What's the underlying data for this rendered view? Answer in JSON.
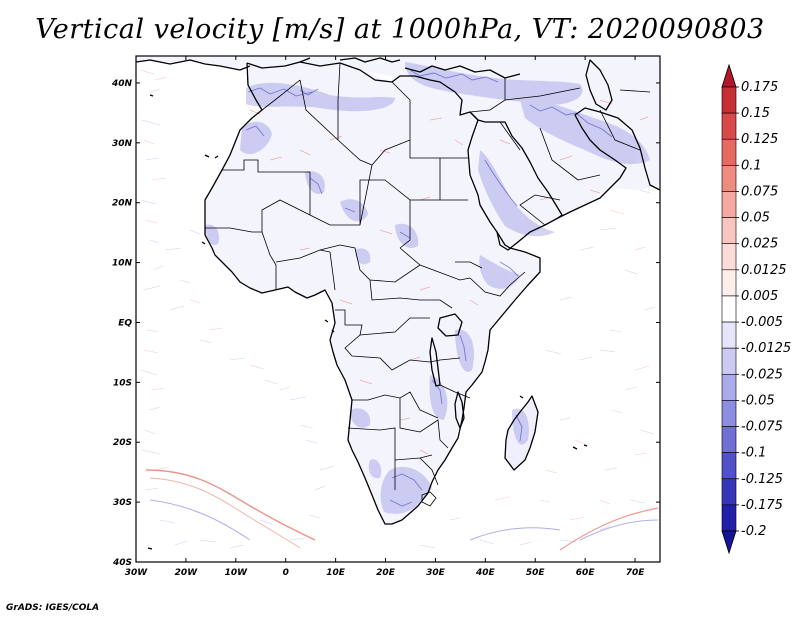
{
  "title": "Vertical velocity [m/s] at 1000hPa, VT: 2020090803",
  "credit": "GrADS: IGES/COLA",
  "map": {
    "lon_labels": [
      "30W",
      "20W",
      "10W",
      "0",
      "10E",
      "20E",
      "30E",
      "40E",
      "50E",
      "60E",
      "70E"
    ],
    "lat_labels": [
      "40N",
      "30N",
      "20N",
      "10N",
      "EQ",
      "10S",
      "20S",
      "30S",
      "40S"
    ],
    "lon_range": [
      -30,
      75
    ],
    "lat_range": [
      -40,
      44.5
    ]
  },
  "colorbar": {
    "labels": [
      "0.175",
      "0.15",
      "0.125",
      "0.1",
      "0.075",
      "0.05",
      "0.025",
      "0.0125",
      "0.005",
      "-0.005",
      "-0.0125",
      "-0.025",
      "-0.05",
      "-0.075",
      "-0.1",
      "-0.125",
      "-0.175",
      "-0.2"
    ],
    "colors": [
      "#b2182b",
      "#c62f35",
      "#d84a49",
      "#e56b60",
      "#ee8c80",
      "#f4aaa0",
      "#f9c6bf",
      "#fbdcd7",
      "#fdeeec",
      "#ffffff",
      "#e6e6fb",
      "#cacaf3",
      "#ababeb",
      "#8d8de1",
      "#6f6fd6",
      "#5151ca",
      "#3636b8",
      "#2020a8",
      "#15159a"
    ]
  }
}
